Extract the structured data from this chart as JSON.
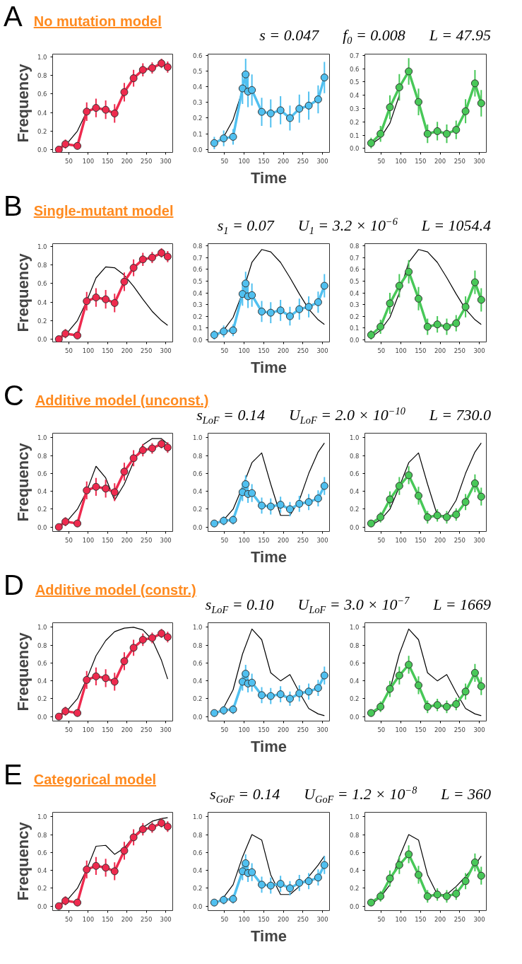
{
  "chart_data": [
    {
      "type": "line",
      "title": "No mutation model",
      "annotations": [
        "A",
        "s = 0.047",
        "f$_{0}$ = 0.008",
        "L = 47.95"
      ],
      "ylabel": "Frequency",
      "xlim": [
        8,
        318
      ],
      "xticks": [
        50,
        100,
        150,
        200,
        250,
        300
      ],
      "ylim": [
        -0.03,
        1.03
      ],
      "yticks": [
        {
          "value": 0,
          "label": "0.0"
        },
        {
          "value": 0.2,
          "label": "0.2"
        },
        {
          "value": 0.4,
          "label": "0.4"
        },
        {
          "value": 0.6,
          "label": "0.6"
        },
        {
          "value": 0.8,
          "label": "0.8"
        },
        {
          "value": 1.0,
          "label": "1.0"
        }
      ],
      "grid": false,
      "series": [
        {
          "color": "#000000",
          "x": [
            24,
            48,
            72,
            96
          ],
          "values": [
            0.02,
            0.08,
            0.2,
            0.41
          ]
        },
        {
          "color": "#ee2a4e",
          "marker": "circle",
          "x": [
            24,
            41,
            72,
            96,
            120,
            145,
            168,
            193,
            217,
            241,
            265,
            289,
            305
          ],
          "values": [
            0.0,
            0.06,
            0.04,
            0.41,
            0.45,
            0.43,
            0.39,
            0.62,
            0.77,
            0.86,
            0.88,
            0.93,
            0.89
          ],
          "errors": [
            0.02,
            0.05,
            0.04,
            0.1,
            0.1,
            0.1,
            0.1,
            0.1,
            0.09,
            0.07,
            0.06,
            0.05,
            0.06
          ]
        }
      ]
    },
    {
      "type": "line",
      "xlabel": "Time",
      "xlim": [
        8,
        318
      ],
      "xticks": [
        50,
        100,
        150,
        200,
        250,
        300
      ],
      "ylim": [
        -0.02,
        0.61
      ],
      "yticks": [
        {
          "value": 0,
          "label": "0.0"
        },
        {
          "value": 0.1,
          "label": "0.1"
        },
        {
          "value": 0.2,
          "label": "0.2"
        },
        {
          "value": 0.3,
          "label": "0.3"
        },
        {
          "value": 0.4,
          "label": "0.4"
        },
        {
          "value": 0.5,
          "label": "0.5"
        },
        {
          "value": 0.6,
          "label": "0.6"
        }
      ],
      "grid": false,
      "series": [
        {
          "color": "#000000",
          "x": [
            24,
            48,
            72,
            96
          ],
          "values": [
            0.03,
            0.08,
            0.19,
            0.38
          ]
        },
        {
          "color": "#50c0f0",
          "marker": "circle",
          "x": [
            24,
            48,
            72,
            96,
            104,
            110,
            120,
            145,
            168,
            193,
            217,
            241,
            265,
            289,
            305
          ],
          "values": [
            0.04,
            0.07,
            0.08,
            0.39,
            0.48,
            0.37,
            0.38,
            0.24,
            0.23,
            0.25,
            0.2,
            0.26,
            0.28,
            0.32,
            0.46
          ],
          "errors": [
            0.04,
            0.05,
            0.05,
            0.1,
            0.1,
            0.1,
            0.1,
            0.09,
            0.09,
            0.09,
            0.08,
            0.09,
            0.09,
            0.09,
            0.1
          ]
        }
      ]
    },
    {
      "type": "line",
      "xlim": [
        8,
        318
      ],
      "xticks": [
        50,
        100,
        150,
        200,
        250,
        300
      ],
      "ylim": [
        -0.03,
        0.71
      ],
      "yticks": [
        {
          "value": 0,
          "label": "0.0"
        },
        {
          "value": 0.1,
          "label": "0.1"
        },
        {
          "value": 0.2,
          "label": "0.2"
        },
        {
          "value": 0.3,
          "label": "0.3"
        },
        {
          "value": 0.4,
          "label": "0.4"
        },
        {
          "value": 0.5,
          "label": "0.5"
        },
        {
          "value": 0.6,
          "label": "0.6"
        },
        {
          "value": 0.7,
          "label": "0.7"
        }
      ],
      "grid": false,
      "series": [
        {
          "color": "#000000",
          "x": [
            24,
            48,
            72,
            96
          ],
          "values": [
            0.03,
            0.08,
            0.19,
            0.4
          ]
        },
        {
          "color": "#48c858",
          "marker": "circle",
          "x": [
            24,
            48,
            72,
            96,
            120,
            145,
            168,
            193,
            217,
            241,
            265,
            289,
            305
          ],
          "values": [
            0.04,
            0.11,
            0.31,
            0.46,
            0.58,
            0.35,
            0.11,
            0.13,
            0.11,
            0.14,
            0.28,
            0.49,
            0.34
          ],
          "errors": [
            0.04,
            0.06,
            0.09,
            0.1,
            0.1,
            0.1,
            0.07,
            0.07,
            0.07,
            0.07,
            0.09,
            0.1,
            0.1
          ]
        }
      ]
    },
    {
      "type": "line",
      "title": "Single-mutant model",
      "annotations": [
        "B",
        "s$_{1}$ = 0.07",
        "U$_{1}$ = 3.2 × 10$^{−6}$",
        "L = 1054.4"
      ],
      "ylabel": "Frequency",
      "xlim": [
        8,
        318
      ],
      "xticks": [
        50,
        100,
        150,
        200,
        250,
        300
      ],
      "ylim": [
        -0.03,
        1.03
      ],
      "yticks": [
        {
          "value": 0,
          "label": "0.0"
        },
        {
          "value": 0.2,
          "label": "0.2"
        },
        {
          "value": 0.4,
          "label": "0.4"
        },
        {
          "value": 0.6,
          "label": "0.6"
        },
        {
          "value": 0.8,
          "label": "0.8"
        },
        {
          "value": 1.0,
          "label": "1.0"
        }
      ],
      "grid": false,
      "series": [
        {
          "color": "#000000",
          "x": [
            24,
            48,
            72,
            96,
            120,
            145,
            168,
            193,
            217,
            241,
            265,
            289,
            305
          ],
          "values": [
            0.02,
            0.08,
            0.2,
            0.41,
            0.66,
            0.78,
            0.77,
            0.69,
            0.57,
            0.43,
            0.3,
            0.2,
            0.15
          ]
        },
        {
          "color": "#ee2a4e",
          "marker": "circle",
          "x": [
            24,
            41,
            72,
            96,
            120,
            145,
            168,
            193,
            217,
            241,
            265,
            289,
            305
          ],
          "values": [
            0.0,
            0.06,
            0.04,
            0.41,
            0.45,
            0.43,
            0.39,
            0.62,
            0.77,
            0.86,
            0.88,
            0.93,
            0.89
          ],
          "errors": [
            0.02,
            0.05,
            0.04,
            0.1,
            0.1,
            0.1,
            0.1,
            0.1,
            0.09,
            0.07,
            0.06,
            0.05,
            0.06
          ]
        }
      ]
    },
    {
      "type": "line",
      "xlabel": "Time",
      "xlim": [
        8,
        318
      ],
      "xticks": [
        50,
        100,
        150,
        200,
        250,
        300
      ],
      "ylim": [
        -0.02,
        0.82
      ],
      "yticks": [
        {
          "value": 0,
          "label": "0.0"
        },
        {
          "value": 0.1,
          "label": "0.1"
        },
        {
          "value": 0.2,
          "label": "0.2"
        },
        {
          "value": 0.3,
          "label": "0.3"
        },
        {
          "value": 0.4,
          "label": "0.4"
        },
        {
          "value": 0.5,
          "label": "0.5"
        },
        {
          "value": 0.6,
          "label": "0.6"
        },
        {
          "value": 0.7,
          "label": "0.7"
        },
        {
          "value": 0.8,
          "label": "0.8"
        }
      ],
      "grid": false,
      "series": [
        {
          "color": "#000000",
          "x": [
            24,
            48,
            72,
            96,
            120,
            145,
            168,
            193,
            217,
            241,
            265,
            289,
            305
          ],
          "values": [
            0.02,
            0.08,
            0.19,
            0.4,
            0.66,
            0.77,
            0.75,
            0.66,
            0.53,
            0.39,
            0.26,
            0.17,
            0.13
          ]
        },
        {
          "color": "#50c0f0",
          "marker": "circle",
          "x": [
            24,
            48,
            72,
            96,
            104,
            110,
            120,
            145,
            168,
            193,
            217,
            241,
            265,
            289,
            305
          ],
          "values": [
            0.04,
            0.07,
            0.08,
            0.39,
            0.48,
            0.37,
            0.38,
            0.24,
            0.23,
            0.25,
            0.2,
            0.26,
            0.28,
            0.32,
            0.46
          ],
          "errors": [
            0.04,
            0.05,
            0.05,
            0.1,
            0.1,
            0.1,
            0.1,
            0.09,
            0.09,
            0.09,
            0.08,
            0.09,
            0.09,
            0.09,
            0.1
          ]
        }
      ]
    },
    {
      "type": "line",
      "xlim": [
        8,
        318
      ],
      "xticks": [
        50,
        100,
        150,
        200,
        250,
        300
      ],
      "ylim": [
        -0.02,
        0.82
      ],
      "yticks": [
        {
          "value": 0,
          "label": "0.0"
        },
        {
          "value": 0.1,
          "label": "0.1"
        },
        {
          "value": 0.2,
          "label": "0.2"
        },
        {
          "value": 0.3,
          "label": "0.3"
        },
        {
          "value": 0.4,
          "label": "0.4"
        },
        {
          "value": 0.5,
          "label": "0.5"
        },
        {
          "value": 0.6,
          "label": "0.6"
        },
        {
          "value": 0.7,
          "label": "0.7"
        },
        {
          "value": 0.8,
          "label": "0.8"
        }
      ],
      "grid": false,
      "series": [
        {
          "color": "#000000",
          "x": [
            24,
            48,
            72,
            96,
            120,
            145,
            168,
            193,
            217,
            241,
            265,
            289,
            305
          ],
          "values": [
            0.02,
            0.08,
            0.19,
            0.4,
            0.66,
            0.77,
            0.75,
            0.66,
            0.53,
            0.39,
            0.26,
            0.17,
            0.13
          ]
        },
        {
          "color": "#48c858",
          "marker": "circle",
          "x": [
            24,
            48,
            72,
            96,
            120,
            145,
            168,
            193,
            217,
            241,
            265,
            289,
            305
          ],
          "values": [
            0.04,
            0.11,
            0.31,
            0.46,
            0.58,
            0.35,
            0.11,
            0.13,
            0.11,
            0.14,
            0.28,
            0.49,
            0.34
          ],
          "errors": [
            0.04,
            0.06,
            0.09,
            0.1,
            0.1,
            0.1,
            0.07,
            0.07,
            0.07,
            0.07,
            0.09,
            0.1,
            0.1
          ]
        }
      ]
    },
    {
      "type": "line",
      "title": "Additive model (unconst.)",
      "annotations": [
        "C",
        "s$_{LoF}$ = 0.14",
        "U$_{LoF}$ = 2.0 × 10$^{−10}$",
        "L = 730.0"
      ],
      "ylabel": "Frequency",
      "xlim": [
        8,
        318
      ],
      "xticks": [
        50,
        100,
        150,
        200,
        250,
        300
      ],
      "ylim": [
        -0.05,
        1.05
      ],
      "yticks": [
        {
          "value": 0,
          "label": "0.0"
        },
        {
          "value": 0.2,
          "label": "0.2"
        },
        {
          "value": 0.4,
          "label": "0.4"
        },
        {
          "value": 0.6,
          "label": "0.6"
        },
        {
          "value": 0.8,
          "label": "0.8"
        },
        {
          "value": 1.0,
          "label": "1.0"
        }
      ],
      "grid": false,
      "series": [
        {
          "color": "#000000",
          "x": [
            24,
            48,
            72,
            96,
            120,
            145,
            168,
            193,
            217,
            241,
            265,
            289,
            305
          ],
          "values": [
            0.02,
            0.08,
            0.2,
            0.4,
            0.68,
            0.55,
            0.3,
            0.48,
            0.73,
            0.92,
            0.99,
            0.99,
            0.93
          ]
        },
        {
          "color": "#ee2a4e",
          "marker": "circle",
          "x": [
            24,
            41,
            72,
            96,
            120,
            145,
            168,
            193,
            217,
            241,
            265,
            289,
            305
          ],
          "values": [
            0.0,
            0.06,
            0.04,
            0.41,
            0.45,
            0.43,
            0.39,
            0.62,
            0.77,
            0.86,
            0.88,
            0.93,
            0.89
          ],
          "errors": [
            0.02,
            0.05,
            0.04,
            0.1,
            0.1,
            0.1,
            0.1,
            0.1,
            0.09,
            0.07,
            0.06,
            0.05,
            0.06
          ]
        }
      ]
    },
    {
      "type": "line",
      "xlabel": "Time",
      "xlim": [
        8,
        318
      ],
      "xticks": [
        50,
        100,
        150,
        200,
        250,
        300
      ],
      "ylim": [
        -0.05,
        1.05
      ],
      "yticks": [
        {
          "value": 0,
          "label": "0.0"
        },
        {
          "value": 0.2,
          "label": "0.2"
        },
        {
          "value": 0.4,
          "label": "0.4"
        },
        {
          "value": 0.6,
          "label": "0.6"
        },
        {
          "value": 0.8,
          "label": "0.8"
        },
        {
          "value": 1.0,
          "label": "1.0"
        }
      ],
      "grid": false,
      "series": [
        {
          "color": "#000000",
          "x": [
            24,
            48,
            72,
            96,
            120,
            145,
            168,
            193,
            217,
            241,
            265,
            289,
            305
          ],
          "values": [
            0.02,
            0.08,
            0.2,
            0.45,
            0.72,
            0.83,
            0.48,
            0.13,
            0.13,
            0.3,
            0.6,
            0.84,
            0.94
          ]
        },
        {
          "color": "#50c0f0",
          "marker": "circle",
          "x": [
            24,
            48,
            72,
            96,
            104,
            110,
            120,
            145,
            168,
            193,
            217,
            241,
            265,
            289,
            305
          ],
          "values": [
            0.04,
            0.07,
            0.08,
            0.39,
            0.48,
            0.37,
            0.38,
            0.24,
            0.23,
            0.25,
            0.2,
            0.26,
            0.28,
            0.32,
            0.46
          ],
          "errors": [
            0.04,
            0.05,
            0.05,
            0.1,
            0.1,
            0.1,
            0.1,
            0.09,
            0.09,
            0.09,
            0.08,
            0.09,
            0.09,
            0.09,
            0.1
          ]
        }
      ]
    },
    {
      "type": "line",
      "xlim": [
        8,
        318
      ],
      "xticks": [
        50,
        100,
        150,
        200,
        250,
        300
      ],
      "ylim": [
        -0.05,
        1.05
      ],
      "yticks": [
        {
          "value": 0,
          "label": "0.0"
        },
        {
          "value": 0.2,
          "label": "0.2"
        },
        {
          "value": 0.4,
          "label": "0.4"
        },
        {
          "value": 0.6,
          "label": "0.6"
        },
        {
          "value": 0.8,
          "label": "0.8"
        },
        {
          "value": 1.0,
          "label": "1.0"
        }
      ],
      "grid": false,
      "series": [
        {
          "color": "#000000",
          "x": [
            24,
            48,
            72,
            96,
            120,
            145,
            168,
            193,
            217,
            241,
            265,
            289,
            305
          ],
          "values": [
            0.02,
            0.08,
            0.2,
            0.45,
            0.72,
            0.83,
            0.48,
            0.13,
            0.13,
            0.3,
            0.6,
            0.84,
            0.94
          ]
        },
        {
          "color": "#48c858",
          "marker": "circle",
          "x": [
            24,
            48,
            72,
            96,
            120,
            145,
            168,
            193,
            217,
            241,
            265,
            289,
            305
          ],
          "values": [
            0.04,
            0.11,
            0.31,
            0.46,
            0.58,
            0.35,
            0.11,
            0.13,
            0.11,
            0.14,
            0.28,
            0.49,
            0.34
          ],
          "errors": [
            0.04,
            0.06,
            0.09,
            0.1,
            0.1,
            0.1,
            0.07,
            0.07,
            0.07,
            0.07,
            0.09,
            0.1,
            0.1
          ]
        }
      ]
    },
    {
      "type": "line",
      "title": "Additive model (constr.)",
      "annotations": [
        "D",
        "s$_{LoF}$ = 0.10",
        "U$_{LoF}$ = 3.0 × 10$^{−7}$",
        "L = 1669"
      ],
      "ylabel": "Frequency",
      "xlim": [
        8,
        318
      ],
      "xticks": [
        50,
        100,
        150,
        200,
        250,
        300
      ],
      "ylim": [
        -0.05,
        1.05
      ],
      "yticks": [
        {
          "value": 0,
          "label": "0.0"
        },
        {
          "value": 0.2,
          "label": "0.2"
        },
        {
          "value": 0.4,
          "label": "0.4"
        },
        {
          "value": 0.6,
          "label": "0.6"
        },
        {
          "value": 0.8,
          "label": "0.8"
        },
        {
          "value": 1.0,
          "label": "1.0"
        }
      ],
      "grid": false,
      "series": [
        {
          "color": "#000000",
          "x": [
            24,
            48,
            72,
            96,
            120,
            145,
            168,
            193,
            217,
            241,
            265,
            289,
            305
          ],
          "values": [
            0.02,
            0.08,
            0.2,
            0.42,
            0.68,
            0.85,
            0.95,
            0.99,
            1.0,
            0.97,
            0.86,
            0.63,
            0.42
          ]
        },
        {
          "color": "#ee2a4e",
          "marker": "circle",
          "x": [
            24,
            41,
            72,
            96,
            120,
            145,
            168,
            193,
            217,
            241,
            265,
            289,
            305
          ],
          "values": [
            0.0,
            0.06,
            0.04,
            0.41,
            0.45,
            0.43,
            0.39,
            0.62,
            0.77,
            0.86,
            0.88,
            0.93,
            0.89
          ],
          "errors": [
            0.02,
            0.05,
            0.04,
            0.1,
            0.1,
            0.1,
            0.1,
            0.1,
            0.09,
            0.07,
            0.06,
            0.05,
            0.06
          ]
        }
      ]
    },
    {
      "type": "line",
      "xlabel": "Time",
      "xlim": [
        8,
        318
      ],
      "xticks": [
        50,
        100,
        150,
        200,
        250,
        300
      ],
      "ylim": [
        -0.05,
        1.05
      ],
      "yticks": [
        {
          "value": 0,
          "label": "0.0"
        },
        {
          "value": 0.2,
          "label": "0.2"
        },
        {
          "value": 0.4,
          "label": "0.4"
        },
        {
          "value": 0.6,
          "label": "0.6"
        },
        {
          "value": 0.8,
          "label": "0.8"
        },
        {
          "value": 1.0,
          "label": "1.0"
        }
      ],
      "grid": false,
      "series": [
        {
          "color": "#000000",
          "x": [
            24,
            48,
            72,
            96,
            120,
            145,
            168,
            193,
            217,
            241,
            265,
            289,
            305
          ],
          "values": [
            0.02,
            0.1,
            0.3,
            0.7,
            0.98,
            0.86,
            0.49,
            0.4,
            0.47,
            0.27,
            0.09,
            0.03,
            0.01
          ]
        },
        {
          "color": "#50c0f0",
          "marker": "circle",
          "x": [
            24,
            48,
            72,
            96,
            104,
            110,
            120,
            145,
            168,
            193,
            217,
            241,
            265,
            289,
            305
          ],
          "values": [
            0.04,
            0.07,
            0.08,
            0.39,
            0.48,
            0.37,
            0.38,
            0.24,
            0.23,
            0.25,
            0.2,
            0.26,
            0.28,
            0.32,
            0.46
          ],
          "errors": [
            0.04,
            0.05,
            0.05,
            0.1,
            0.1,
            0.1,
            0.1,
            0.09,
            0.09,
            0.09,
            0.08,
            0.09,
            0.09,
            0.09,
            0.1
          ]
        }
      ]
    },
    {
      "type": "line",
      "xlim": [
        8,
        318
      ],
      "xticks": [
        50,
        100,
        150,
        200,
        250,
        300
      ],
      "ylim": [
        -0.05,
        1.05
      ],
      "yticks": [
        {
          "value": 0,
          "label": "0.0"
        },
        {
          "value": 0.2,
          "label": "0.2"
        },
        {
          "value": 0.4,
          "label": "0.4"
        },
        {
          "value": 0.6,
          "label": "0.6"
        },
        {
          "value": 0.8,
          "label": "0.8"
        },
        {
          "value": 1.0,
          "label": "1.0"
        }
      ],
      "grid": false,
      "series": [
        {
          "color": "#000000",
          "x": [
            24,
            48,
            72,
            96,
            120,
            145,
            168,
            193,
            217,
            241,
            265,
            289,
            305
          ],
          "values": [
            0.02,
            0.1,
            0.3,
            0.7,
            0.98,
            0.86,
            0.49,
            0.4,
            0.47,
            0.27,
            0.09,
            0.03,
            0.01
          ]
        },
        {
          "color": "#48c858",
          "marker": "circle",
          "x": [
            24,
            48,
            72,
            96,
            120,
            145,
            168,
            193,
            217,
            241,
            265,
            289,
            305
          ],
          "values": [
            0.04,
            0.11,
            0.31,
            0.46,
            0.58,
            0.35,
            0.11,
            0.13,
            0.11,
            0.14,
            0.28,
            0.49,
            0.34
          ],
          "errors": [
            0.04,
            0.06,
            0.09,
            0.1,
            0.1,
            0.1,
            0.07,
            0.07,
            0.07,
            0.07,
            0.09,
            0.1,
            0.1
          ]
        }
      ]
    },
    {
      "type": "line",
      "title": "Categorical model",
      "annotations": [
        "E",
        "s$_{GoF}$ = 0.14",
        "U$_{GoF}$ = 1.2 × 10$^{−8}$",
        "L = 360"
      ],
      "ylabel": "Frequency",
      "xlim": [
        8,
        318
      ],
      "xticks": [
        50,
        100,
        150,
        200,
        250,
        300
      ],
      "ylim": [
        -0.05,
        1.05
      ],
      "yticks": [
        {
          "value": 0,
          "label": "0.0"
        },
        {
          "value": 0.2,
          "label": "0.2"
        },
        {
          "value": 0.4,
          "label": "0.4"
        },
        {
          "value": 0.6,
          "label": "0.6"
        },
        {
          "value": 0.8,
          "label": "0.8"
        },
        {
          "value": 1.0,
          "label": "1.0"
        }
      ],
      "grid": false,
      "series": [
        {
          "color": "#000000",
          "x": [
            24,
            48,
            72,
            96,
            120,
            145,
            168,
            193,
            217,
            241,
            265,
            289,
            305
          ],
          "values": [
            0.02,
            0.08,
            0.2,
            0.41,
            0.67,
            0.68,
            0.58,
            0.65,
            0.78,
            0.88,
            0.95,
            0.98,
            0.99
          ]
        },
        {
          "color": "#ee2a4e",
          "marker": "circle",
          "x": [
            24,
            41,
            72,
            96,
            120,
            145,
            168,
            193,
            217,
            241,
            265,
            289,
            305
          ],
          "values": [
            0.0,
            0.06,
            0.04,
            0.41,
            0.45,
            0.43,
            0.39,
            0.62,
            0.77,
            0.86,
            0.88,
            0.93,
            0.89
          ],
          "errors": [
            0.02,
            0.05,
            0.04,
            0.1,
            0.1,
            0.1,
            0.1,
            0.1,
            0.09,
            0.07,
            0.06,
            0.05,
            0.06
          ]
        }
      ]
    },
    {
      "type": "line",
      "xlabel": "Time",
      "xlim": [
        8,
        318
      ],
      "xticks": [
        50,
        100,
        150,
        200,
        250,
        300
      ],
      "ylim": [
        -0.05,
        1.05
      ],
      "yticks": [
        {
          "value": 0,
          "label": "0.0"
        },
        {
          "value": 0.2,
          "label": "0.2"
        },
        {
          "value": 0.4,
          "label": "0.4"
        },
        {
          "value": 0.6,
          "label": "0.6"
        },
        {
          "value": 0.8,
          "label": "0.8"
        },
        {
          "value": 1.0,
          "label": "1.0"
        }
      ],
      "grid": false,
      "series": [
        {
          "color": "#000000",
          "x": [
            24,
            48,
            72,
            96,
            120,
            145,
            168,
            193,
            217,
            241,
            265,
            289,
            305
          ],
          "values": [
            0.02,
            0.1,
            0.24,
            0.55,
            0.8,
            0.74,
            0.35,
            0.13,
            0.13,
            0.22,
            0.33,
            0.46,
            0.56
          ]
        },
        {
          "color": "#50c0f0",
          "marker": "circle",
          "x": [
            24,
            48,
            72,
            96,
            104,
            110,
            120,
            145,
            168,
            193,
            217,
            241,
            265,
            289,
            305
          ],
          "values": [
            0.04,
            0.07,
            0.08,
            0.39,
            0.48,
            0.37,
            0.38,
            0.24,
            0.23,
            0.25,
            0.2,
            0.26,
            0.28,
            0.32,
            0.46
          ],
          "errors": [
            0.04,
            0.05,
            0.05,
            0.1,
            0.1,
            0.1,
            0.1,
            0.09,
            0.09,
            0.09,
            0.08,
            0.09,
            0.09,
            0.09,
            0.1
          ]
        }
      ]
    },
    {
      "type": "line",
      "xlim": [
        8,
        318
      ],
      "xticks": [
        50,
        100,
        150,
        200,
        250,
        300
      ],
      "ylim": [
        -0.05,
        1.05
      ],
      "yticks": [
        {
          "value": 0,
          "label": "0.0"
        },
        {
          "value": 0.2,
          "label": "0.2"
        },
        {
          "value": 0.4,
          "label": "0.4"
        },
        {
          "value": 0.6,
          "label": "0.6"
        },
        {
          "value": 0.8,
          "label": "0.8"
        },
        {
          "value": 1.0,
          "label": "1.0"
        }
      ],
      "grid": false,
      "series": [
        {
          "color": "#000000",
          "x": [
            24,
            48,
            72,
            96,
            120,
            145,
            168,
            193,
            217,
            241,
            265,
            289,
            305
          ],
          "values": [
            0.02,
            0.1,
            0.24,
            0.55,
            0.8,
            0.74,
            0.35,
            0.13,
            0.13,
            0.22,
            0.33,
            0.46,
            0.56
          ]
        },
        {
          "color": "#48c858",
          "marker": "circle",
          "x": [
            24,
            48,
            72,
            96,
            120,
            145,
            168,
            193,
            217,
            241,
            265,
            289,
            305
          ],
          "values": [
            0.04,
            0.11,
            0.31,
            0.46,
            0.58,
            0.35,
            0.11,
            0.13,
            0.11,
            0.14,
            0.28,
            0.49,
            0.34
          ],
          "errors": [
            0.04,
            0.06,
            0.09,
            0.1,
            0.1,
            0.1,
            0.07,
            0.07,
            0.07,
            0.07,
            0.09,
            0.1,
            0.1
          ]
        }
      ]
    }
  ]
}
